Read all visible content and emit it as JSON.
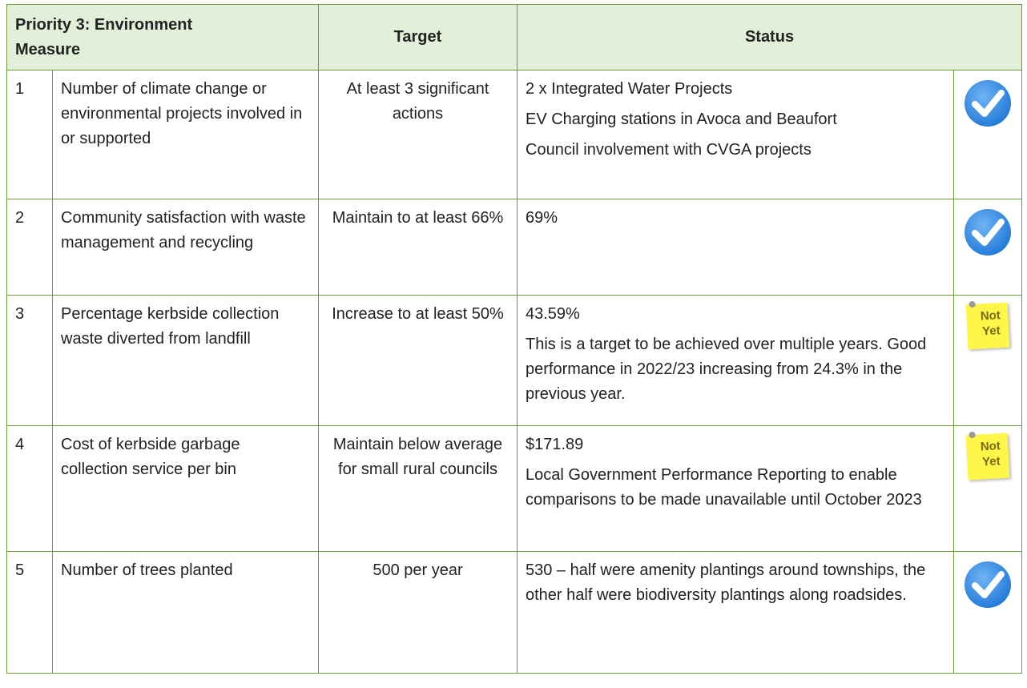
{
  "header": {
    "measure": [
      "Priority 3: Environment",
      "Measure"
    ],
    "target": "Target",
    "status": "Status"
  },
  "table": {
    "rows": [
      {
        "number": "1",
        "measure": "Number of climate change or environmental projects involved in or supported",
        "target": "At least 3 significant actions",
        "status": [
          "2 x Integrated Water Projects",
          "EV Charging stations in Avoca and Beaufort",
          "Council involvement with CVGA projects"
        ],
        "achieved": true
      },
      {
        "number": "2",
        "measure": "Community satisfaction with waste management and recycling",
        "target": "Maintain to at least 66%",
        "status": [
          "69%"
        ],
        "achieved": true
      },
      {
        "number": "3",
        "measure": "Percentage kerbside collection waste diverted from landfill",
        "target": "Increase to at least 50%",
        "status": [
          "43.59%",
          "This is a target to be achieved over multiple years. Good performance in 2022/23 increasing from 24.3% in the previous year."
        ],
        "achieved": false,
        "badge": "Not Yet"
      },
      {
        "number": "4",
        "measure": "Cost of kerbside garbage collection service per bin",
        "target": "Maintain below average for small rural councils",
        "status": [
          "$171.89",
          "Local Government Performance Reporting to enable comparisons to be made unavailable until October 2023"
        ],
        "achieved": false,
        "badge": "Not Yet"
      },
      {
        "number": "5",
        "measure": "Number of trees planted",
        "target": "500 per year",
        "status": [
          "530 – half were amenity plantings around townships, the other half were biodiversity plantings along roadsides."
        ],
        "achieved": true
      }
    ]
  }
}
